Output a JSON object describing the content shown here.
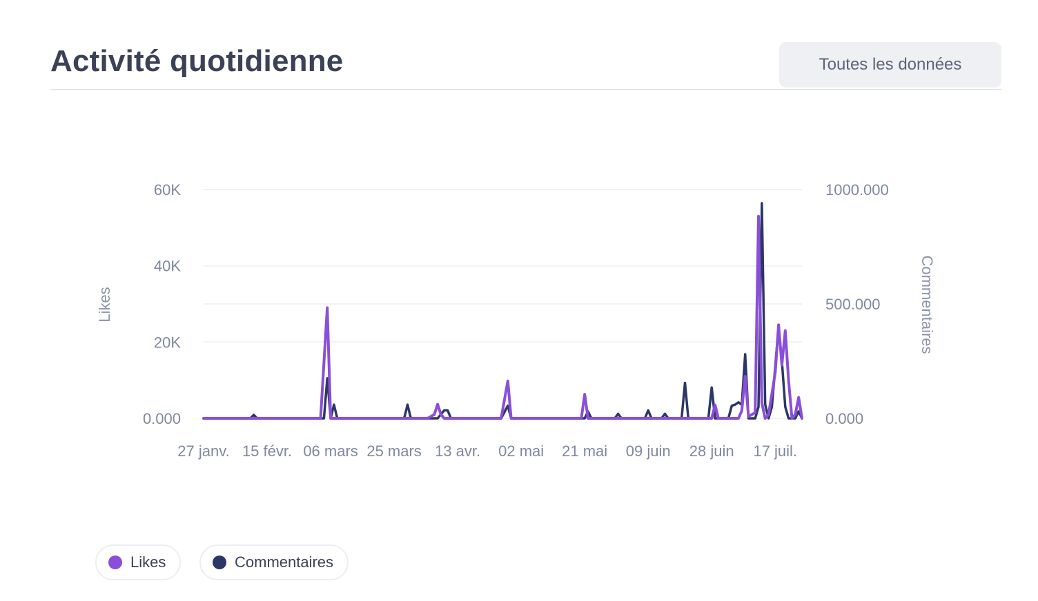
{
  "header": {
    "title": "Activité quotidienne",
    "all_data_button": "Toutes les données"
  },
  "colors": {
    "likes": "#8a4fd8",
    "commentaires": "#2c3766",
    "grid": "#eceef5",
    "tick": "#7e889f"
  },
  "legend": {
    "likes_label": "Likes",
    "comments_label": "Commentaires"
  },
  "chart_data": {
    "type": "line",
    "title": "",
    "x_tick_labels": [
      "27 janv.",
      "15 févr.",
      "06 mars",
      "25 mars",
      "13 avr.",
      "02 mai",
      "21 mai",
      "09 juin",
      "28 juin",
      "17 juil."
    ],
    "y_left": {
      "label": "Likes",
      "ticks": [
        "0.000",
        "20K",
        "40K",
        "60K"
      ],
      "range": [
        0,
        60000
      ]
    },
    "y_right": {
      "label": "Commentaires",
      "ticks": [
        "0.000",
        "500.000",
        "1000.000"
      ],
      "range": [
        0,
        1000
      ]
    },
    "grid": true,
    "series": [
      {
        "name": "Likes",
        "axis": "left",
        "points": [
          [
            "27 janv.",
            0
          ],
          [
            "03 mars",
            0
          ],
          [
            "05 mars",
            29000
          ],
          [
            "06 mars",
            0
          ],
          [
            "21 mars",
            0
          ],
          [
            "04 avr.",
            0
          ],
          [
            "06 avr.",
            1000
          ],
          [
            "07 avr.",
            3700
          ],
          [
            "08 avr.",
            1000
          ],
          [
            "09 avr.",
            0
          ],
          [
            "26 avr.",
            0
          ],
          [
            "28 avr.",
            9800
          ],
          [
            "29 avr.",
            0
          ],
          [
            "20 mai",
            0
          ],
          [
            "21 mai",
            6300
          ],
          [
            "22 mai",
            0
          ],
          [
            "28 juin",
            0
          ],
          [
            "29 juin",
            3500
          ],
          [
            "30 juin",
            0
          ],
          [
            "06 juil.",
            0
          ],
          [
            "07 juil.",
            2000
          ],
          [
            "08 juil.",
            11000
          ],
          [
            "09 juil.",
            500
          ],
          [
            "11 juil.",
            1500
          ],
          [
            "12 juil.",
            53000
          ],
          [
            "13 juil.",
            4000
          ],
          [
            "14 juil.",
            0
          ],
          [
            "15 juil.",
            1000
          ],
          [
            "17 juil.",
            12000
          ],
          [
            "18 juil.",
            24500
          ],
          [
            "19 juil.",
            14000
          ],
          [
            "20 juil.",
            23000
          ],
          [
            "21 juil.",
            10000
          ],
          [
            "22 juil.",
            0
          ],
          [
            "23 juil.",
            1000
          ],
          [
            "24 juil.",
            5500
          ],
          [
            "25 juil.",
            0
          ]
        ]
      },
      {
        "name": "Commentaires",
        "axis": "right",
        "points": [
          [
            "27 janv.",
            0
          ],
          [
            "10 févr.",
            0
          ],
          [
            "11 févr.",
            15
          ],
          [
            "12 févr.",
            0
          ],
          [
            "04 mars",
            0
          ],
          [
            "05 mars",
            175
          ],
          [
            "06 mars",
            0
          ],
          [
            "07 mars",
            60
          ],
          [
            "08 mars",
            0
          ],
          [
            "28 mars",
            0
          ],
          [
            "29 mars",
            60
          ],
          [
            "30 mars",
            0
          ],
          [
            "07 avr.",
            0
          ],
          [
            "09 avr.",
            35
          ],
          [
            "10 avr.",
            35
          ],
          [
            "11 avr.",
            0
          ],
          [
            "26 avr.",
            0
          ],
          [
            "28 avr.",
            55
          ],
          [
            "29 avr.",
            0
          ],
          [
            "21 mai",
            0
          ],
          [
            "22 mai",
            30
          ],
          [
            "23 mai",
            0
          ],
          [
            "30 mai",
            0
          ],
          [
            "31 mai",
            20
          ],
          [
            "01 juin",
            0
          ],
          [
            "08 juin",
            0
          ],
          [
            "09 juin",
            35
          ],
          [
            "10 juin",
            0
          ],
          [
            "13 juin",
            0
          ],
          [
            "14 juin",
            20
          ],
          [
            "15 juin",
            0
          ],
          [
            "19 juin",
            0
          ],
          [
            "20 juin",
            155
          ],
          [
            "21 juin",
            0
          ],
          [
            "27 juin",
            0
          ],
          [
            "28 juin",
            135
          ],
          [
            "29 juin",
            0
          ],
          [
            "03 juil.",
            0
          ],
          [
            "04 juil.",
            55
          ],
          [
            "05 juil.",
            60
          ],
          [
            "06 juil.",
            70
          ],
          [
            "07 juil.",
            60
          ],
          [
            "08 juil.",
            280
          ],
          [
            "09 juil.",
            0
          ],
          [
            "11 juil.",
            0
          ],
          [
            "12 juil.",
            50
          ],
          [
            "13 juil.",
            940
          ],
          [
            "14 juil.",
            60
          ],
          [
            "15 juil.",
            0
          ],
          [
            "16 juil.",
            50
          ],
          [
            "18 juil.",
            400
          ],
          [
            "19 juil.",
            250
          ],
          [
            "20 juil.",
            50
          ],
          [
            "21 juil.",
            0
          ],
          [
            "23 juil.",
            0
          ],
          [
            "24 juil.",
            30
          ],
          [
            "25 juil.",
            0
          ]
        ]
      }
    ]
  }
}
